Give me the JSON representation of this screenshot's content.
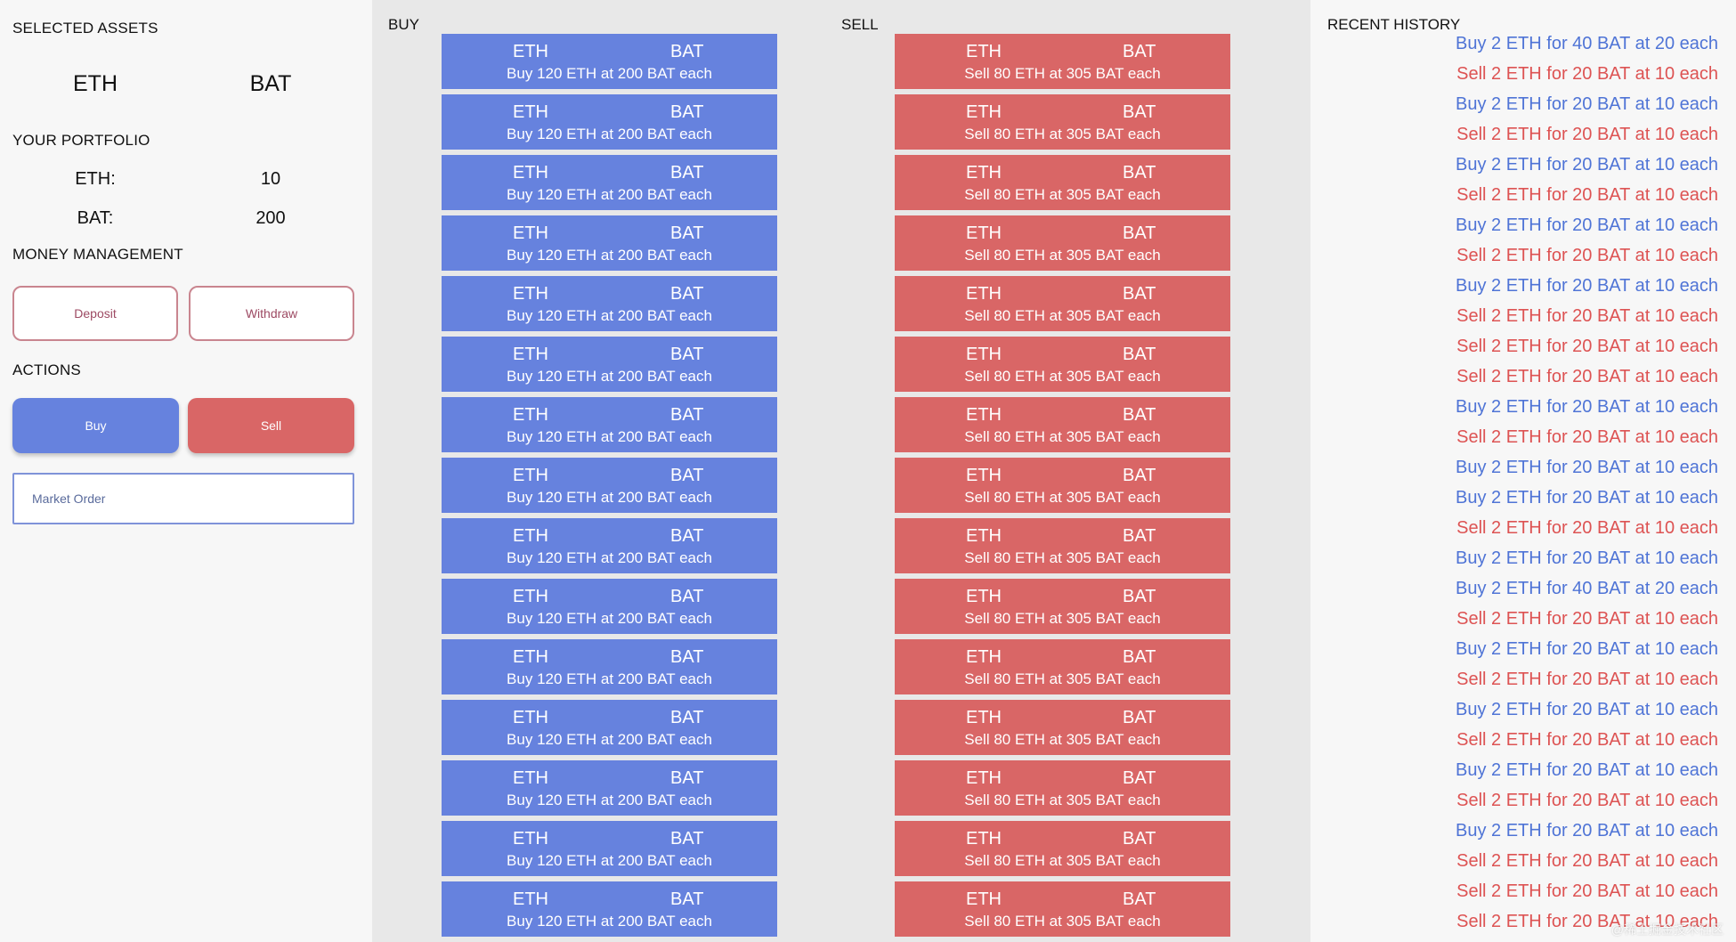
{
  "sidebar": {
    "selected_assets_title": "SELECTED ASSETS",
    "base_asset": "ETH",
    "quote_asset": "BAT",
    "portfolio_title": "YOUR PORTFOLIO",
    "portfolio": [
      {
        "label": "ETH:",
        "value": "10"
      },
      {
        "label": "BAT:",
        "value": "200"
      }
    ],
    "money_title": "MONEY MANAGEMENT",
    "deposit_label": "Deposit",
    "withdraw_label": "Withdraw",
    "actions_title": "ACTIONS",
    "buy_label": "Buy",
    "sell_label": "Sell",
    "order_type": "Market Order"
  },
  "book": {
    "buy_title": "BUY",
    "sell_title": "SELL",
    "buy_orders": [
      {
        "base": "ETH",
        "quote": "BAT",
        "desc": "Buy 120 ETH at 200 BAT each"
      },
      {
        "base": "ETH",
        "quote": "BAT",
        "desc": "Buy 120 ETH at 200 BAT each"
      },
      {
        "base": "ETH",
        "quote": "BAT",
        "desc": "Buy 120 ETH at 200 BAT each"
      },
      {
        "base": "ETH",
        "quote": "BAT",
        "desc": "Buy 120 ETH at 200 BAT each"
      },
      {
        "base": "ETH",
        "quote": "BAT",
        "desc": "Buy 120 ETH at 200 BAT each"
      },
      {
        "base": "ETH",
        "quote": "BAT",
        "desc": "Buy 120 ETH at 200 BAT each"
      },
      {
        "base": "ETH",
        "quote": "BAT",
        "desc": "Buy 120 ETH at 200 BAT each"
      },
      {
        "base": "ETH",
        "quote": "BAT",
        "desc": "Buy 120 ETH at 200 BAT each"
      },
      {
        "base": "ETH",
        "quote": "BAT",
        "desc": "Buy 120 ETH at 200 BAT each"
      },
      {
        "base": "ETH",
        "quote": "BAT",
        "desc": "Buy 120 ETH at 200 BAT each"
      },
      {
        "base": "ETH",
        "quote": "BAT",
        "desc": "Buy 120 ETH at 200 BAT each"
      },
      {
        "base": "ETH",
        "quote": "BAT",
        "desc": "Buy 120 ETH at 200 BAT each"
      },
      {
        "base": "ETH",
        "quote": "BAT",
        "desc": "Buy 120 ETH at 200 BAT each"
      },
      {
        "base": "ETH",
        "quote": "BAT",
        "desc": "Buy 120 ETH at 200 BAT each"
      },
      {
        "base": "ETH",
        "quote": "BAT",
        "desc": "Buy 120 ETH at 200 BAT each"
      }
    ],
    "sell_orders": [
      {
        "base": "ETH",
        "quote": "BAT",
        "desc": "Sell 80 ETH at 305 BAT each"
      },
      {
        "base": "ETH",
        "quote": "BAT",
        "desc": "Sell 80 ETH at 305 BAT each"
      },
      {
        "base": "ETH",
        "quote": "BAT",
        "desc": "Sell 80 ETH at 305 BAT each"
      },
      {
        "base": "ETH",
        "quote": "BAT",
        "desc": "Sell 80 ETH at 305 BAT each"
      },
      {
        "base": "ETH",
        "quote": "BAT",
        "desc": "Sell 80 ETH at 305 BAT each"
      },
      {
        "base": "ETH",
        "quote": "BAT",
        "desc": "Sell 80 ETH at 305 BAT each"
      },
      {
        "base": "ETH",
        "quote": "BAT",
        "desc": "Sell 80 ETH at 305 BAT each"
      },
      {
        "base": "ETH",
        "quote": "BAT",
        "desc": "Sell 80 ETH at 305 BAT each"
      },
      {
        "base": "ETH",
        "quote": "BAT",
        "desc": "Sell 80 ETH at 305 BAT each"
      },
      {
        "base": "ETH",
        "quote": "BAT",
        "desc": "Sell 80 ETH at 305 BAT each"
      },
      {
        "base": "ETH",
        "quote": "BAT",
        "desc": "Sell 80 ETH at 305 BAT each"
      },
      {
        "base": "ETH",
        "quote": "BAT",
        "desc": "Sell 80 ETH at 305 BAT each"
      },
      {
        "base": "ETH",
        "quote": "BAT",
        "desc": "Sell 80 ETH at 305 BAT each"
      },
      {
        "base": "ETH",
        "quote": "BAT",
        "desc": "Sell 80 ETH at 305 BAT each"
      },
      {
        "base": "ETH",
        "quote": "BAT",
        "desc": "Sell 80 ETH at 305 BAT each"
      }
    ]
  },
  "history": {
    "title": "RECENT HISTORY",
    "items": [
      {
        "side": "buy",
        "text": "Buy 2 ETH for 40 BAT at 20 each"
      },
      {
        "side": "sell",
        "text": "Sell 2 ETH for 20 BAT at 10 each"
      },
      {
        "side": "buy",
        "text": "Buy 2 ETH for 20 BAT at 10 each"
      },
      {
        "side": "sell",
        "text": "Sell 2 ETH for 20 BAT at 10 each"
      },
      {
        "side": "buy",
        "text": "Buy 2 ETH for 20 BAT at 10 each"
      },
      {
        "side": "sell",
        "text": "Sell 2 ETH for 20 BAT at 10 each"
      },
      {
        "side": "buy",
        "text": "Buy 2 ETH for 20 BAT at 10 each"
      },
      {
        "side": "sell",
        "text": "Sell 2 ETH for 20 BAT at 10 each"
      },
      {
        "side": "buy",
        "text": "Buy 2 ETH for 20 BAT at 10 each"
      },
      {
        "side": "sell",
        "text": "Sell 2 ETH for 20 BAT at 10 each"
      },
      {
        "side": "sell",
        "text": "Sell 2 ETH for 20 BAT at 10 each"
      },
      {
        "side": "sell",
        "text": "Sell 2 ETH for 20 BAT at 10 each"
      },
      {
        "side": "buy",
        "text": "Buy 2 ETH for 20 BAT at 10 each"
      },
      {
        "side": "sell",
        "text": "Sell 2 ETH for 20 BAT at 10 each"
      },
      {
        "side": "buy",
        "text": "Buy 2 ETH for 20 BAT at 10 each"
      },
      {
        "side": "buy",
        "text": "Buy 2 ETH for 20 BAT at 10 each"
      },
      {
        "side": "sell",
        "text": "Sell 2 ETH for 20 BAT at 10 each"
      },
      {
        "side": "buy",
        "text": "Buy 2 ETH for 20 BAT at 10 each"
      },
      {
        "side": "buy",
        "text": "Buy 2 ETH for 40 BAT at 20 each"
      },
      {
        "side": "sell",
        "text": "Sell 2 ETH for 20 BAT at 10 each"
      },
      {
        "side": "buy",
        "text": "Buy 2 ETH for 20 BAT at 10 each"
      },
      {
        "side": "sell",
        "text": "Sell 2 ETH for 20 BAT at 10 each"
      },
      {
        "side": "buy",
        "text": "Buy 2 ETH for 20 BAT at 10 each"
      },
      {
        "side": "sell",
        "text": "Sell 2 ETH for 20 BAT at 10 each"
      },
      {
        "side": "buy",
        "text": "Buy 2 ETH for 20 BAT at 10 each"
      },
      {
        "side": "sell",
        "text": "Sell 2 ETH for 20 BAT at 10 each"
      },
      {
        "side": "buy",
        "text": "Buy 2 ETH for 20 BAT at 10 each"
      },
      {
        "side": "sell",
        "text": "Sell 2 ETH for 20 BAT at 10 each"
      },
      {
        "side": "sell",
        "text": "Sell 2 ETH for 20 BAT at 10 each"
      },
      {
        "side": "sell",
        "text": "Sell 2 ETH for 20 BAT at 10 each"
      }
    ],
    "watermark": "@稀土掘金技术社区"
  },
  "colors": {
    "buy": "#6682de",
    "sell": "#d96666",
    "history_buy": "#4f74d6",
    "history_sell": "#dd5353"
  }
}
